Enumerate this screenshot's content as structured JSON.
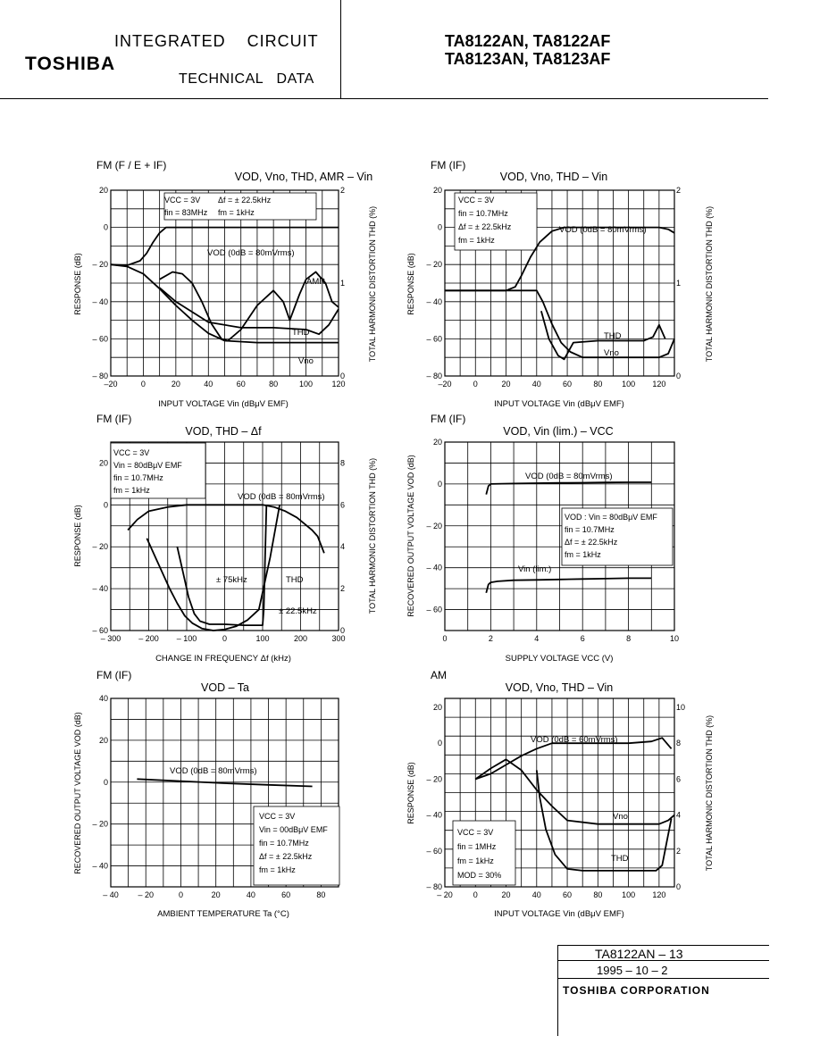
{
  "header": {
    "brand": "TOSHIBA",
    "title_line1": "INTEGRATED CIRCUIT",
    "title_line2": "TECHNICAL DATA",
    "parts_line1": "TA8122AN, TA8122AF",
    "parts_line2": "TA8123AN, TA8123AF"
  },
  "footer": {
    "doc_id": "TA8122AN – 13",
    "date": "1995 – 10 – 2",
    "corporation": "TOSHIBA CORPORATION"
  },
  "chart_data": [
    {
      "type": "line",
      "panel_label": "FM (F / E + IF)",
      "title": "V_OD, V_no, THD, AMR – V_in",
      "xlabel": "INPUT VOLTAGE Vin (dBμV EMF)",
      "ylabel": "RESPONSE (dB)",
      "y2label": "TOTAL HARMONIC DISTORTION THD (%)",
      "xlim": [
        -20,
        120
      ],
      "ylim": [
        -80,
        20
      ],
      "y2lim": [
        0,
        2
      ],
      "xticks": [
        "–20",
        "0",
        "20",
        "40",
        "60",
        "80",
        "100",
        "120"
      ],
      "yticks": [
        "20",
        "0",
        "– 20",
        "– 40",
        "– 60",
        "– 80"
      ],
      "y2ticks": [
        "2",
        "1",
        "0"
      ],
      "conditions": [
        "VCC = 3V",
        "Δf = ± 22.5kHz",
        "fin = 83MHz",
        "fm = 1kHz"
      ],
      "series": [
        {
          "name": "VOD (0dB = 80mVrms)",
          "axis": "left",
          "x": [
            -20,
            -10,
            -2,
            2,
            6,
            10,
            14,
            20,
            40,
            70,
            100,
            120
          ],
          "y": [
            -20,
            -20.5,
            -18,
            -14,
            -8,
            -3,
            0,
            0,
            0,
            0,
            0,
            0
          ]
        },
        {
          "name": "Vno",
          "axis": "left",
          "x": [
            -20,
            -10,
            0,
            10,
            20,
            30,
            40,
            50,
            70,
            100,
            120
          ],
          "y": [
            -20,
            -21,
            -25,
            -33,
            -42,
            -50,
            -57,
            -61,
            -62,
            -62,
            -62
          ]
        },
        {
          "name": "AMR",
          "axis": "left",
          "x": [
            10,
            18,
            24,
            30,
            36,
            42,
            48,
            52,
            60,
            70,
            80,
            86,
            90,
            96,
            100,
            106,
            112,
            116,
            120
          ],
          "y": [
            -28,
            -24,
            -25,
            -30,
            -40,
            -52,
            -60,
            -61,
            -55,
            -42,
            -34,
            -40,
            -50,
            -36,
            -28,
            -24,
            -30,
            -40,
            -43
          ]
        },
        {
          "name": "THD",
          "axis": "right",
          "x": [
            10,
            20,
            40,
            60,
            80,
            100,
            108,
            114,
            120
          ],
          "y": [
            0.95,
            0.8,
            0.58,
            0.52,
            0.52,
            0.5,
            0.45,
            0.55,
            0.72
          ]
        }
      ]
    },
    {
      "type": "line",
      "panel_label": "FM (IF)",
      "title": "V_OD, V_no, THD – V_in",
      "xlabel": "INPUT VOLTAGE Vin (dBμV EMF)",
      "ylabel": "RESPONSE (dB)",
      "y2label": "TOTAL HARMONIC DISTORTION THD (%)",
      "xlim": [
        -20,
        130
      ],
      "ylim": [
        -80,
        20
      ],
      "y2lim": [
        0,
        2
      ],
      "xticks": [
        "–20",
        "0",
        "20",
        "40",
        "60",
        "80",
        "100",
        "120"
      ],
      "yticks": [
        "20",
        "0",
        "– 20",
        "– 40",
        "– 60",
        "– 80"
      ],
      "y2ticks": [
        "2",
        "1",
        "0"
      ],
      "conditions": [
        "VCC = 3V",
        "fin = 10.7MHz",
        "Δf = ± 22.5kHz",
        "fm = 1kHz"
      ],
      "series": [
        {
          "name": "VOD (0dB = 80mVrms)",
          "axis": "left",
          "x": [
            -20,
            20,
            26,
            30,
            36,
            42,
            50,
            58,
            70,
            100,
            120,
            126,
            130
          ],
          "y": [
            -34,
            -34,
            -32,
            -26,
            -16,
            -8,
            -2,
            0,
            0,
            0,
            0,
            -1,
            -3
          ]
        },
        {
          "name": "Vno",
          "axis": "left",
          "x": [
            -20,
            40,
            44,
            50,
            56,
            62,
            70,
            80,
            100,
            120,
            126,
            130
          ],
          "y": [
            -34,
            -34,
            -40,
            -52,
            -62,
            -67,
            -70,
            -70,
            -70,
            -70,
            -68,
            -60
          ]
        },
        {
          "name": "THD",
          "axis": "right",
          "x": [
            43,
            48,
            54,
            58,
            64,
            80,
            100,
            110,
            116,
            120,
            124
          ],
          "y": [
            0.7,
            0.4,
            0.22,
            0.18,
            0.36,
            0.38,
            0.38,
            0.38,
            0.42,
            0.55,
            0.4
          ]
        }
      ]
    },
    {
      "type": "line",
      "panel_label": "FM (IF)",
      "title": "V_OD, THD – Δf",
      "xlabel": "CHANGE IN FREQUENCY Δf (kHz)",
      "ylabel": "RESPONSE (dB)",
      "y2label": "TOTAL HARMONIC DISTORTION THD (%)",
      "xlim": [
        -300,
        300
      ],
      "ylim": [
        -60,
        30
      ],
      "y2lim": [
        0,
        9
      ],
      "xticks": [
        "– 300",
        "– 200",
        "– 100",
        "0",
        "100",
        "200",
        "300"
      ],
      "yticks": [
        "20",
        "0",
        "– 20",
        "– 40",
        "– 60"
      ],
      "y2ticks": [
        "8",
        "6",
        "4",
        "2",
        "0"
      ],
      "conditions": [
        "VCC = 3V",
        "Vin = 80dBμV EMF",
        "fin = 10.7MHz",
        "fm = 1kHz"
      ],
      "annotations": [
        "± 75kHz",
        "THD",
        "± 22.5kHz"
      ],
      "series": [
        {
          "name": "VOD (0dB = 80mVrms)",
          "axis": "left",
          "x": [
            -255,
            -230,
            -200,
            -150,
            -100,
            -50,
            0,
            50,
            100,
            130,
            160,
            190,
            210,
            230,
            245,
            262
          ],
          "y": [
            -12,
            -7,
            -3,
            -1,
            0,
            0,
            0,
            0,
            0,
            -1,
            -3,
            -6,
            -9,
            -12,
            -15,
            -23
          ]
        },
        {
          "name": "THD ± 75kHz",
          "axis": "right",
          "x": [
            -205,
            -185,
            -165,
            -145,
            -125,
            -105,
            -85,
            -60,
            -30,
            0,
            30,
            60,
            90,
            120,
            145
          ],
          "y": [
            4.4,
            3.6,
            2.8,
            2.0,
            1.3,
            0.7,
            0.35,
            0.1,
            0.0,
            0.05,
            0.2,
            0.5,
            1.0,
            3.5,
            6.0
          ]
        },
        {
          "name": "THD ± 22.5kHz",
          "axis": "right",
          "x": [
            -125,
            -110,
            -95,
            -80,
            -65,
            -40,
            0,
            50,
            100,
            103,
            106,
            110
          ],
          "y": [
            4.0,
            2.8,
            1.6,
            0.8,
            0.45,
            0.3,
            0.3,
            0.25,
            0.25,
            1.0,
            3.0,
            6.0
          ]
        }
      ]
    },
    {
      "type": "line",
      "panel_label": "FM (IF)",
      "title": "V_OD, V_in (lim.) – V_CC",
      "xlabel": "SUPPLY VOLTAGE VCC (V)",
      "ylabel": "RECOVERED OUTPUT VOLTAGE VOD (dB)",
      "xlim": [
        0,
        10
      ],
      "ylim": [
        -70,
        20
      ],
      "xticks": [
        "0",
        "2",
        "4",
        "6",
        "8",
        "10"
      ],
      "yticks": [
        "20",
        "0",
        "– 20",
        "– 40",
        "– 60"
      ],
      "conditions": [
        "VOD : Vin = 80dBμV EMF",
        "fin = 10.7MHz",
        "Δf = ± 22.5kHz",
        "fm = 1kHz"
      ],
      "series": [
        {
          "name": "VOD (0dB = 80mVrms)",
          "x": [
            1.8,
            1.9,
            2.0,
            3,
            4,
            5,
            6,
            7,
            8,
            9
          ],
          "y": [
            -5,
            -1,
            0,
            0.2,
            0.4,
            0.5,
            0.6,
            0.7,
            0.8,
            0.8
          ]
        },
        {
          "name": "Vin (lim.)",
          "x": [
            1.8,
            1.9,
            2.0,
            2.3,
            3,
            4,
            5,
            6,
            7,
            8,
            9
          ],
          "y": [
            -52,
            -48,
            -47,
            -46.5,
            -46,
            -45.8,
            -45.6,
            -45.4,
            -45.2,
            -45,
            -45
          ]
        }
      ]
    },
    {
      "type": "line",
      "panel_label": "FM (IF)",
      "title": "V_OD – Ta",
      "xlabel": "AMBIENT TEMPERATURE Ta (°C)",
      "ylabel": "RECOVERED OUTPUT VOLTAGE VOD (dB)",
      "xlim": [
        -40,
        90
      ],
      "ylim": [
        -50,
        40
      ],
      "xticks": [
        "– 40",
        "– 20",
        "0",
        "20",
        "40",
        "60",
        "80"
      ],
      "yticks": [
        "40",
        "20",
        "0",
        "– 20",
        "– 40"
      ],
      "conditions": [
        "VCC = 3V",
        "Vin = 00dBμV EMF",
        "fin = 10.7MHz",
        "Δf = ± 22.5kHz",
        "fm = 1kHz"
      ],
      "series": [
        {
          "name": "VOD (0dB = 80mVrms)",
          "x": [
            -25,
            0,
            25,
            50,
            75
          ],
          "y": [
            1.5,
            0.5,
            -0.5,
            -1.3,
            -2
          ]
        }
      ]
    },
    {
      "type": "line",
      "panel_label": "AM",
      "title": "V_OD, V_no, THD – V_in",
      "xlabel": "INPUT VOLTAGE Vin (dBμV EMF)",
      "ylabel": "RESPONSE (dB)",
      "y2label": "TOTAL HARMONIC DISTORTION THD (%)",
      "xlim": [
        -20,
        130
      ],
      "ylim": [
        -80,
        25
      ],
      "y2lim": [
        0,
        10.5
      ],
      "xticks": [
        "– 20",
        "0",
        "20",
        "40",
        "60",
        "80",
        "100",
        "120"
      ],
      "yticks": [
        "20",
        "0",
        "– 20",
        "– 40",
        "– 60",
        "– 80"
      ],
      "y2ticks": [
        "10",
        "8",
        "6",
        "4",
        "2",
        "0"
      ],
      "conditions": [
        "VCC = 3V",
        "fin = 1MHz",
        "fm = 1kHz",
        "MOD = 30%"
      ],
      "series": [
        {
          "name": "VOD (0dB = 60mVrms)",
          "axis": "left",
          "x": [
            0,
            10,
            20,
            30,
            40,
            50,
            60,
            80,
            100,
            115,
            122,
            128
          ],
          "y": [
            -20,
            -17,
            -12,
            -7,
            -3,
            0,
            0,
            0,
            0,
            1,
            3,
            -3
          ]
        },
        {
          "name": "Vno",
          "axis": "left",
          "x": [
            0,
            10,
            20,
            30,
            40,
            50,
            60,
            80,
            100,
            120,
            126,
            130
          ],
          "y": [
            -20,
            -14,
            -9,
            -15,
            -26,
            -35,
            -43,
            -45,
            -45,
            -45,
            -43,
            -40
          ]
        },
        {
          "name": "THD",
          "axis": "right",
          "x": [
            40,
            42,
            46,
            52,
            60,
            70,
            90,
            110,
            118,
            122,
            125,
            128
          ],
          "y": [
            6.5,
            5.0,
            3.2,
            1.8,
            1.0,
            0.9,
            0.9,
            0.9,
            0.9,
            1.2,
            2.5,
            3.8
          ]
        }
      ]
    }
  ]
}
